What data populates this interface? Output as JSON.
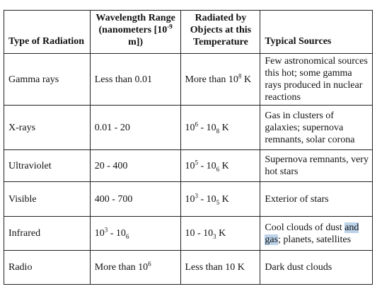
{
  "table": {
    "header": [
      "Type of Radiation",
      [
        "Wavelength Range (nanometers [10",
        {
          "sup": "-9"
        },
        " m])"
      ],
      "Radiated by Objects at this Temperature",
      "Typical Sources"
    ],
    "rows": [
      [
        "Gamma rays",
        "Less than 0.01",
        [
          "More than 10",
          {
            "sup": "8"
          },
          " K"
        ],
        "Few astronomical sources this hot; some gamma rays produced in nuclear reactions"
      ],
      [
        "X-rays",
        "0.01 - 20",
        [
          "10",
          {
            "sup": "6"
          },
          " - 10",
          {
            "sub": "8"
          },
          " K"
        ],
        "Gas in clusters of galaxies; supernova remnants, solar corona"
      ],
      [
        "Ultraviolet",
        "20 - 400",
        [
          "10",
          {
            "sup": "5"
          },
          " - 10",
          {
            "sub": "6"
          },
          " K"
        ],
        "Supernova remnants, very hot stars"
      ],
      [
        "Visible",
        "400 - 700",
        [
          "10",
          {
            "sup": "3"
          },
          " - 10",
          {
            "sub": "5"
          },
          " K"
        ],
        "Exterior of stars"
      ],
      [
        "Infrared",
        [
          "10",
          {
            "sup": "3"
          },
          " - 10",
          {
            "sub": "6"
          }
        ],
        [
          "10 - 10",
          {
            "sub": "3"
          },
          " K"
        ],
        [
          "Cool clouds of dust ",
          {
            "hl": "and"
          },
          " ",
          {
            "hl": "gas"
          },
          "; planets, satellites"
        ]
      ],
      [
        "Radio",
        [
          "More than 10",
          {
            "sup": "6"
          }
        ],
        "Less than 10 K",
        "Dark dust clouds"
      ]
    ]
  }
}
